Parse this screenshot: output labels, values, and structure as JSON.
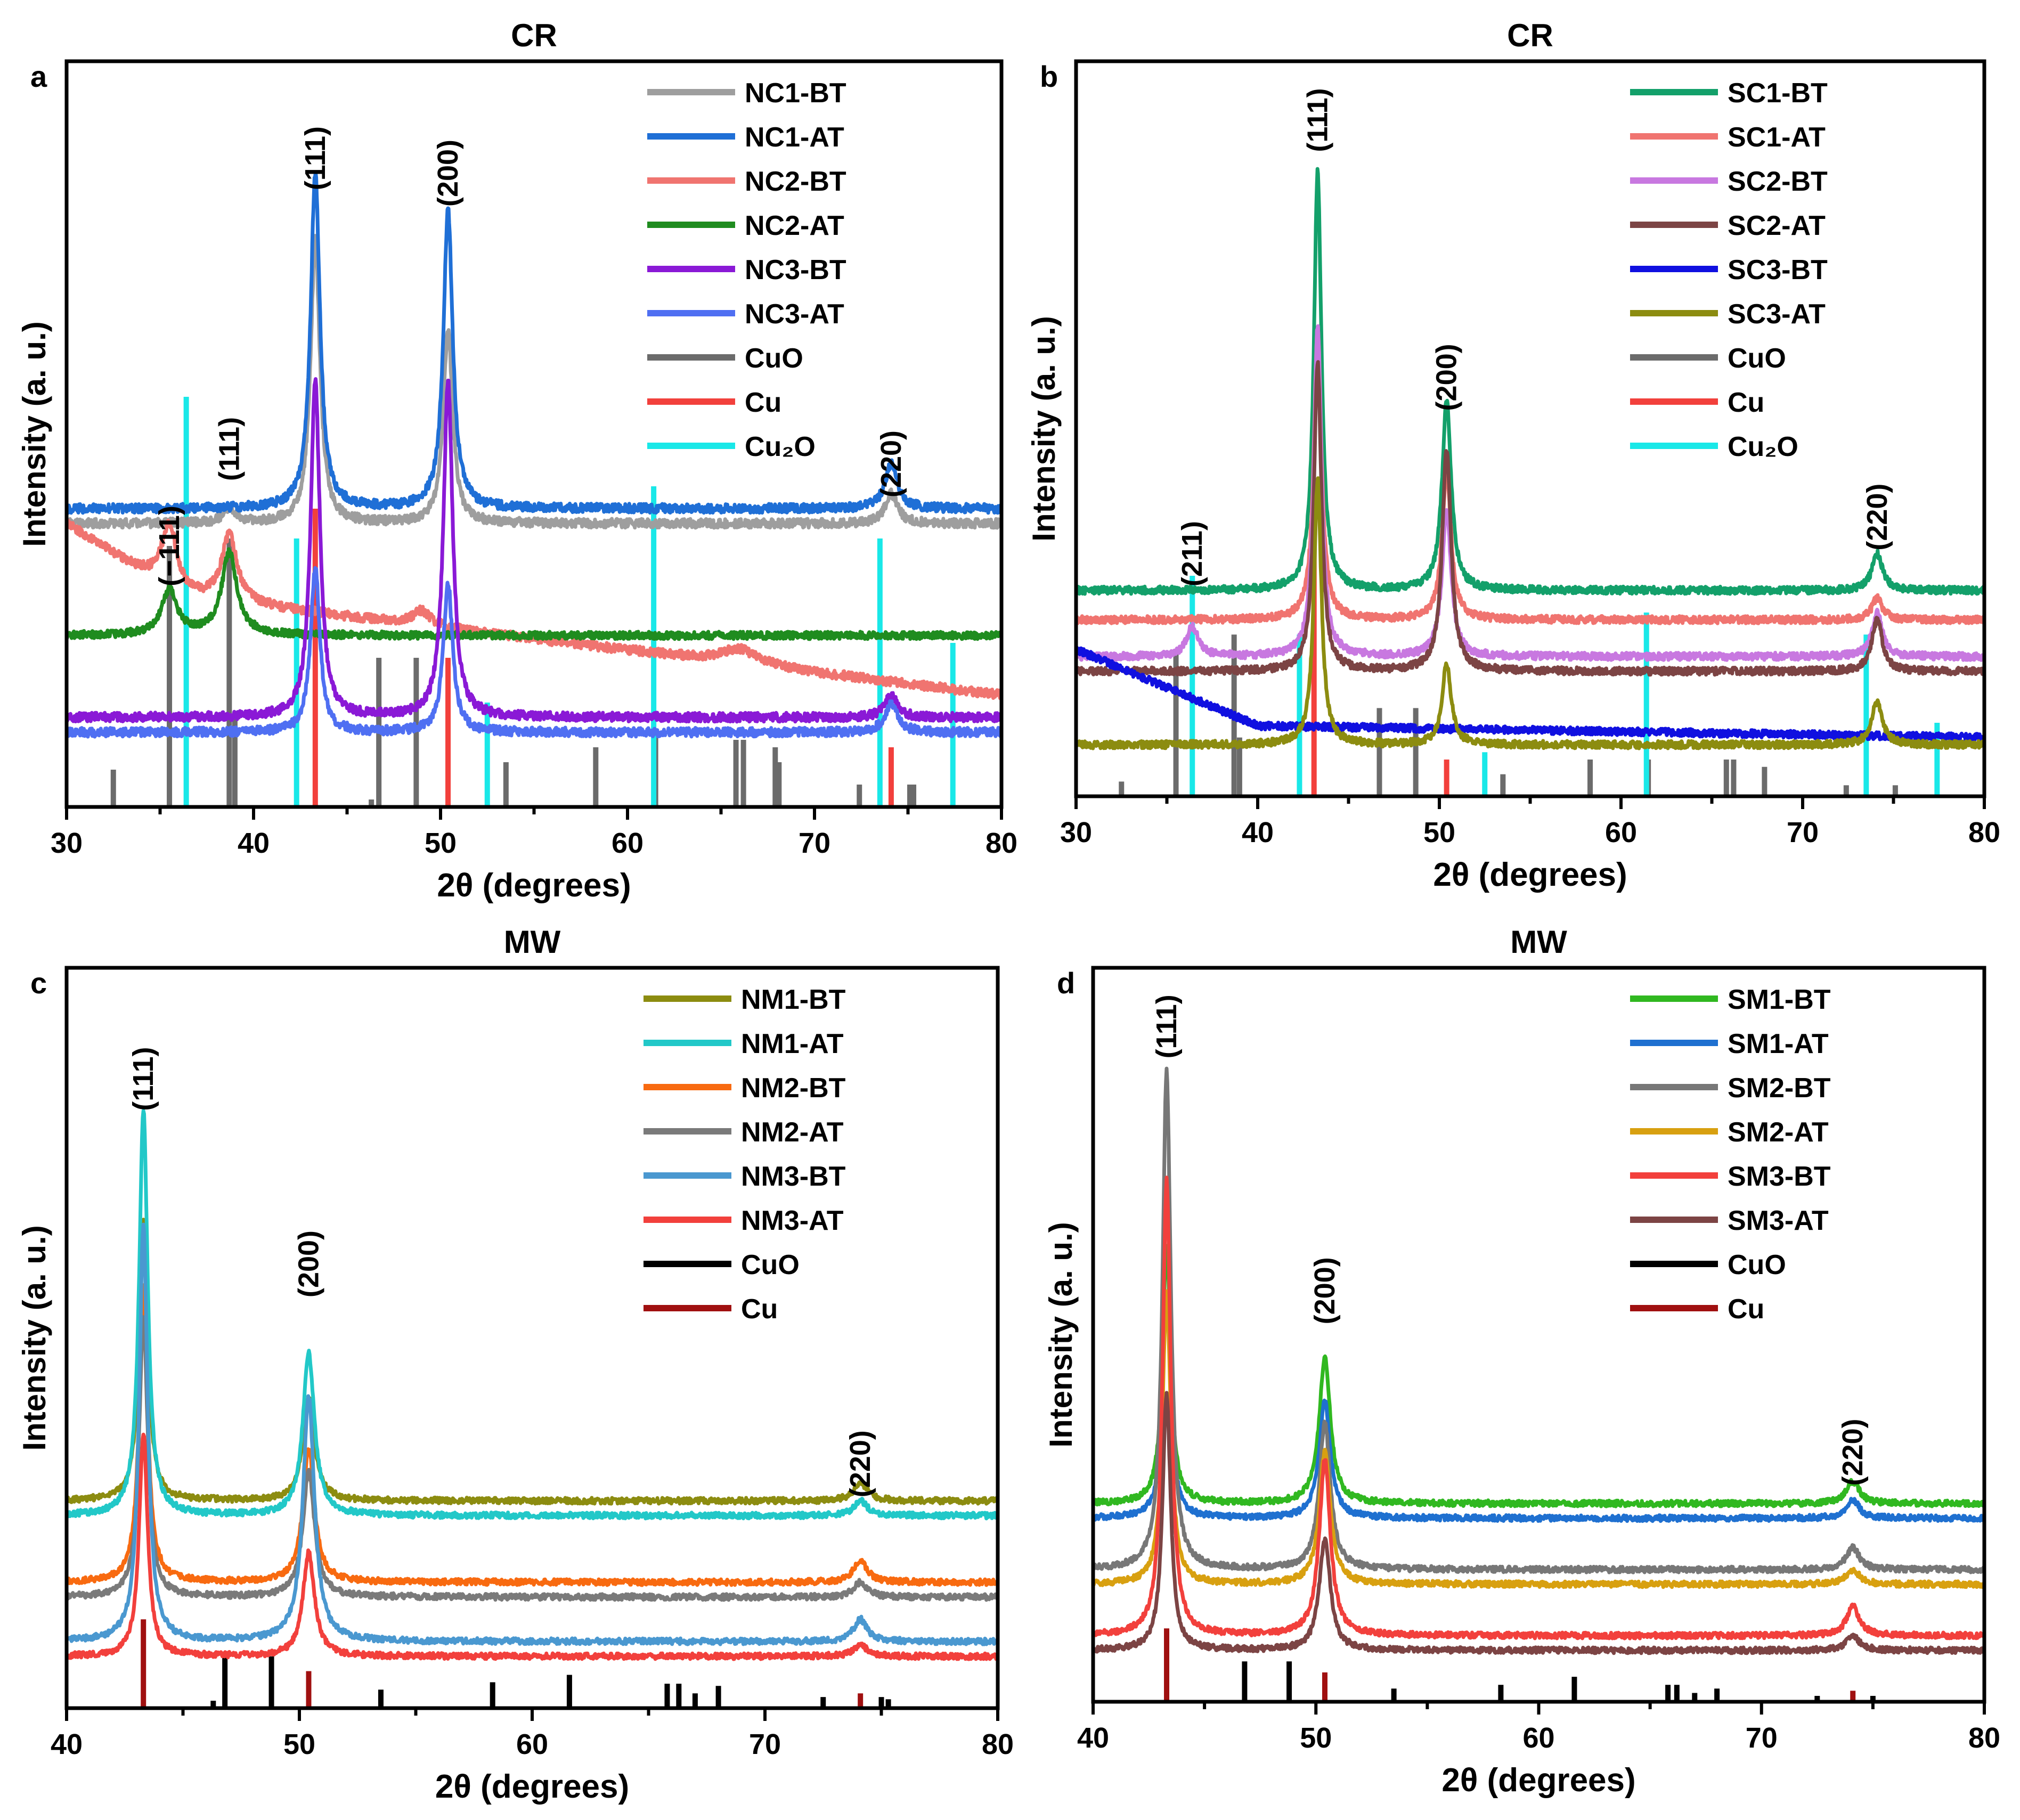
{
  "chart_data": [
    {
      "panel": "a",
      "title": "CR",
      "type": "line",
      "xlabel": "2θ (degrees)",
      "ylabel": "Intensity (a. u.)",
      "xlim": [
        30,
        80
      ],
      "xticks": [
        30,
        40,
        50,
        60,
        70,
        80
      ],
      "ylim": [
        0,
        100
      ],
      "grid": false,
      "legend_position": "top-right",
      "series": [
        {
          "name": "NC1-BT",
          "color": "#9e9e9e",
          "base": 38,
          "noise": 0.6,
          "slope": 0,
          "peaks": [
            [
              38.7,
              2,
              0.4
            ],
            [
              43.3,
              38,
              0.3
            ],
            [
              50.4,
              26,
              0.3
            ],
            [
              74.1,
              4,
              0.4
            ]
          ]
        },
        {
          "name": "NC1-AT",
          "color": "#1f6fd6",
          "base": 40,
          "noise": 0.6,
          "slope": 0,
          "peaks": [
            [
              43.3,
              45,
              0.3
            ],
            [
              50.4,
              40,
              0.3
            ],
            [
              74.1,
              6,
              0.4
            ]
          ]
        },
        {
          "name": "NC2-BT",
          "color": "#f07470",
          "base": 30,
          "noise": 0.6,
          "slope": -0.3,
          "tail": [
            30,
            36,
            8
          ],
          "peaks": [
            [
              35.5,
              9,
              0.5
            ],
            [
              38.7,
              9,
              0.5
            ],
            [
              49,
              2,
              0.6
            ],
            [
              66,
              2,
              1.2
            ]
          ]
        },
        {
          "name": "NC2-AT",
          "color": "#1f8c1f",
          "base": 23,
          "noise": 0.5,
          "slope": 0,
          "peaks": [
            [
              35.5,
              6,
              0.5
            ],
            [
              38.7,
              11,
              0.5
            ]
          ]
        },
        {
          "name": "NC3-BT",
          "color": "#8a19d6",
          "base": 12,
          "noise": 0.6,
          "slope": 0,
          "peaks": [
            [
              43.3,
              45,
              0.3
            ],
            [
              50.4,
              45,
              0.3
            ],
            [
              74.1,
              3,
              0.4
            ]
          ]
        },
        {
          "name": "NC3-AT",
          "color": "#4f6ff2",
          "base": 10,
          "noise": 0.6,
          "slope": 0,
          "peaks": [
            [
              43.3,
              22,
              0.3
            ],
            [
              50.4,
              20,
              0.3
            ],
            [
              74.1,
              4,
              0.4
            ]
          ]
        }
      ],
      "references": [
        {
          "name": "CuO",
          "color": "#6b6b6b",
          "lines": [
            [
              32.5,
              5
            ],
            [
              35.5,
              35
            ],
            [
              38.7,
              36
            ],
            [
              39,
              12
            ],
            [
              46.3,
              1
            ],
            [
              48.7,
              20
            ],
            [
              46.7,
              20
            ],
            [
              53.5,
              6
            ],
            [
              58.3,
              8
            ],
            [
              61.5,
              10
            ],
            [
              65.8,
              9
            ],
            [
              66.2,
              9
            ],
            [
              67.9,
              8
            ],
            [
              68.1,
              6
            ],
            [
              72.4,
              3
            ],
            [
              75.1,
              3
            ],
            [
              75.3,
              3
            ]
          ]
        },
        {
          "name": "Cu",
          "color": "#f2403c",
          "lines": [
            [
              43.3,
              40
            ],
            [
              50.4,
              20
            ],
            [
              74.1,
              8
            ]
          ]
        },
        {
          "name": "Cu₂O",
          "color": "#19e8e8",
          "lines": [
            [
              36.4,
              55
            ],
            [
              42.3,
              36
            ],
            [
              52.5,
              14
            ],
            [
              61.4,
              43
            ],
            [
              73.5,
              36
            ],
            [
              77.4,
              22
            ]
          ]
        }
      ],
      "annotations": [
        {
          "label": "(−111)",
          "x": 35.5,
          "y": 35
        },
        {
          "label": "(111)",
          "x": 38.7,
          "y": 48
        },
        {
          "label": "(111)",
          "x": 43.3,
          "y": 87
        },
        {
          "label": "(200)",
          "x": 50.4,
          "y": 85
        },
        {
          "label": "(220)",
          "x": 74.1,
          "y": 46
        }
      ]
    },
    {
      "panel": "b",
      "title": "CR",
      "type": "line",
      "xlabel": "2θ (degrees)",
      "ylabel": "Intensity (a. u.)",
      "xlim": [
        30,
        80
      ],
      "xticks": [
        30,
        40,
        50,
        60,
        70,
        80
      ],
      "ylim": [
        0,
        100
      ],
      "grid": false,
      "legend_position": "top-right",
      "series": [
        {
          "name": "SC1-BT",
          "color": "#13a06a",
          "base": 28,
          "noise": 0.5,
          "slope": 0,
          "peaks": [
            [
              43.3,
              57,
              0.25
            ],
            [
              50.4,
              26,
              0.3
            ],
            [
              74.1,
              5,
              0.35
            ]
          ]
        },
        {
          "name": "SC1-AT",
          "color": "#f07470",
          "base": 24,
          "noise": 0.5,
          "slope": 0,
          "peaks": [
            [
              43.3,
              40,
              0.25
            ],
            [
              50.4,
              20,
              0.3
            ],
            [
              74.1,
              3,
              0.35
            ]
          ]
        },
        {
          "name": "SC2-BT",
          "color": "#c878e0",
          "base": 19,
          "noise": 0.5,
          "slope": 0,
          "peaks": [
            [
              36.4,
              4,
              0.4
            ],
            [
              43.3,
              45,
              0.25
            ],
            [
              50.4,
              20,
              0.3
            ],
            [
              74.1,
              6,
              0.35
            ]
          ]
        },
        {
          "name": "SC2-AT",
          "color": "#7c4444",
          "base": 17,
          "noise": 0.5,
          "slope": 0,
          "peaks": [
            [
              43.3,
              42,
              0.25
            ],
            [
              50.4,
              30,
              0.3
            ],
            [
              74.1,
              7,
              0.35
            ]
          ]
        },
        {
          "name": "SC3-BT",
          "color": "#1010e0",
          "base": 10,
          "noise": 0.5,
          "slope": -0.04,
          "tail": [
            30,
            40,
            10
          ],
          "peaks": []
        },
        {
          "name": "SC3-AT",
          "color": "#8c8c10",
          "base": 7,
          "noise": 0.5,
          "slope": 0,
          "peaks": [
            [
              43.3,
              36,
              0.25
            ],
            [
              50.4,
              11,
              0.3
            ],
            [
              74.1,
              6,
              0.35
            ]
          ]
        }
      ],
      "references": [
        {
          "name": "CuO",
          "color": "#6b6b6b",
          "lines": [
            [
              32.5,
              2
            ],
            [
              35.5,
              20
            ],
            [
              38.7,
              22
            ],
            [
              39,
              8
            ],
            [
              46.7,
              12
            ],
            [
              48.7,
              12
            ],
            [
              53.5,
              3
            ],
            [
              58.3,
              5
            ],
            [
              61.5,
              5
            ],
            [
              65.8,
              5
            ],
            [
              66.2,
              5
            ],
            [
              67.9,
              4
            ],
            [
              72.4,
              1.5
            ],
            [
              75.1,
              1.5
            ]
          ]
        },
        {
          "name": "Cu",
          "color": "#f2403c",
          "lines": [
            [
              43.1,
              40
            ],
            [
              50.4,
              5
            ]
          ]
        },
        {
          "name": "Cu₂O",
          "color": "#19e8e8",
          "lines": [
            [
              36.4,
              30
            ],
            [
              42.3,
              22
            ],
            [
              52.5,
              6
            ],
            [
              61.4,
              25
            ],
            [
              73.5,
              22
            ],
            [
              77.4,
              10
            ]
          ]
        }
      ],
      "annotations": [
        {
          "label": "(211)",
          "x": 36.4,
          "y": 33
        },
        {
          "label": "(111)",
          "x": 43.3,
          "y": 92
        },
        {
          "label": "(200)",
          "x": 50.4,
          "y": 57
        },
        {
          "label": "(220)",
          "x": 74.1,
          "y": 38
        }
      ]
    },
    {
      "panel": "c",
      "title": "MW",
      "type": "line",
      "xlabel": "2θ (degrees)",
      "ylabel": "Intensity (a. u.)",
      "xlim": [
        40,
        80
      ],
      "xticks": [
        40,
        50,
        60,
        70,
        80
      ],
      "ylim": [
        0,
        100
      ],
      "grid": false,
      "legend_position": "top-right",
      "series": [
        {
          "name": "NM1-BT",
          "color": "#8c8c10",
          "base": 28,
          "noise": 0.4,
          "slope": 0,
          "peaks": [
            [
              43.3,
              38,
              0.22
            ],
            [
              50.4,
              14,
              0.3
            ],
            [
              74.1,
              2.5,
              0.35
            ]
          ]
        },
        {
          "name": "NM1-AT",
          "color": "#22c8c8",
          "base": 26,
          "noise": 0.4,
          "slope": 0,
          "peaks": [
            [
              43.3,
              55,
              0.22
            ],
            [
              50.4,
              22,
              0.3
            ],
            [
              74.1,
              2,
              0.35
            ]
          ]
        },
        {
          "name": "NM2-BT",
          "color": "#f86a10",
          "base": 17,
          "noise": 0.4,
          "slope": 0,
          "peaks": [
            [
              43.3,
              40,
              0.22
            ],
            [
              50.4,
              18,
              0.3
            ],
            [
              74.1,
              3,
              0.35
            ]
          ]
        },
        {
          "name": "NM2-AT",
          "color": "#7a7a7a",
          "base": 15,
          "noise": 0.4,
          "slope": 0,
          "peaks": [
            [
              43.3,
              38,
              0.22
            ],
            [
              50.4,
              17,
              0.3
            ],
            [
              74.1,
              2,
              0.35
            ]
          ]
        },
        {
          "name": "NM3-BT",
          "color": "#4a98d0",
          "base": 9,
          "noise": 0.4,
          "slope": 0,
          "peaks": [
            [
              43.3,
              56,
              0.22
            ],
            [
              50.4,
              33,
              0.3
            ],
            [
              74.1,
              3,
              0.35
            ]
          ]
        },
        {
          "name": "NM3-AT",
          "color": "#f2403c",
          "base": 7,
          "noise": 0.4,
          "slope": 0,
          "peaks": [
            [
              43.3,
              30,
              0.22
            ],
            [
              50.4,
              14,
              0.3
            ],
            [
              74.1,
              1.5,
              0.35
            ]
          ]
        }
      ],
      "references": [
        {
          "name": "CuO",
          "color": "#000000",
          "lines": [
            [
              46.3,
              1
            ],
            [
              46.8,
              7
            ],
            [
              48.8,
              7
            ],
            [
              53.5,
              2.5
            ],
            [
              58.3,
              3.5
            ],
            [
              61.6,
              4.5
            ],
            [
              65.8,
              3.3
            ],
            [
              66.3,
              3.3
            ],
            [
              67,
              2
            ],
            [
              68,
              3
            ],
            [
              72.5,
              1.5
            ],
            [
              75,
              1.5
            ],
            [
              75.3,
              1.2
            ]
          ]
        },
        {
          "name": "Cu",
          "color": "#a01010",
          "lines": [
            [
              43.3,
              12
            ],
            [
              50.4,
              5
            ],
            [
              74.1,
              2
            ]
          ]
        }
      ],
      "annotations": [
        {
          "label": "(111)",
          "x": 43.3,
          "y": 85
        },
        {
          "label": "(200)",
          "x": 50.4,
          "y": 60
        },
        {
          "label": "(220)",
          "x": 74.1,
          "y": 33
        }
      ]
    },
    {
      "panel": "d",
      "title": "MW",
      "type": "line",
      "xlabel": "2θ (degrees)",
      "ylabel": "Intensity (a. u.)",
      "xlim": [
        40,
        80
      ],
      "xticks": [
        40,
        50,
        60,
        70,
        80
      ],
      "ylim": [
        0,
        100
      ],
      "grid": false,
      "legend_position": "top-right",
      "series": [
        {
          "name": "SM1-BT",
          "color": "#30b820",
          "base": 27,
          "noise": 0.4,
          "slope": 0,
          "peaks": [
            [
              43.3,
              35,
              0.22
            ],
            [
              50.4,
              20,
              0.3
            ],
            [
              74.1,
              3,
              0.35
            ]
          ]
        },
        {
          "name": "SM1-AT",
          "color": "#1f70d0",
          "base": 25,
          "noise": 0.4,
          "slope": 0,
          "peaks": [
            [
              43.3,
              30,
              0.22
            ],
            [
              50.4,
              16,
              0.3
            ],
            [
              74.1,
              2.5,
              0.35
            ]
          ]
        },
        {
          "name": "SM2-BT",
          "color": "#777777",
          "base": 18,
          "noise": 0.4,
          "slope": 0,
          "peaks": [
            [
              43.3,
              68,
              0.22
            ],
            [
              50.4,
              20,
              0.3
            ],
            [
              74.1,
              3,
              0.35
            ]
          ]
        },
        {
          "name": "SM2-AT",
          "color": "#d8a010",
          "base": 16,
          "noise": 0.4,
          "slope": 0,
          "peaks": [
            [
              43.3,
              40,
              0.22
            ],
            [
              50.4,
              18,
              0.3
            ],
            [
              74.1,
              2,
              0.35
            ]
          ]
        },
        {
          "name": "SM3-BT",
          "color": "#f2403c",
          "base": 9,
          "noise": 0.4,
          "slope": 0,
          "peaks": [
            [
              43.3,
              62,
              0.22
            ],
            [
              50.4,
              24,
              0.3
            ],
            [
              74.1,
              4,
              0.35
            ]
          ]
        },
        {
          "name": "SM3-AT",
          "color": "#7c4444",
          "base": 7,
          "noise": 0.4,
          "slope": 0,
          "peaks": [
            [
              43.3,
              35,
              0.22
            ],
            [
              50.4,
              15,
              0.3
            ],
            [
              74.1,
              2,
              0.35
            ]
          ]
        }
      ],
      "references": [
        {
          "name": "CuO",
          "color": "#000000",
          "lines": [
            [
              46.8,
              5.5
            ],
            [
              48.8,
              5.5
            ],
            [
              53.5,
              1.8
            ],
            [
              58.3,
              2.3
            ],
            [
              61.6,
              3.4
            ],
            [
              65.8,
              2.3
            ],
            [
              66.2,
              2.3
            ],
            [
              67,
              1.2
            ],
            [
              68,
              1.8
            ],
            [
              72.5,
              0.8
            ],
            [
              75,
              0.8
            ]
          ]
        },
        {
          "name": "Cu",
          "color": "#a01010",
          "lines": [
            [
              43.3,
              10
            ],
            [
              50.4,
              4
            ],
            [
              74.1,
              1.5
            ]
          ]
        }
      ],
      "annotations": [
        {
          "label": "(111)",
          "x": 43.3,
          "y": 92
        },
        {
          "label": "(200)",
          "x": 50.4,
          "y": 56
        },
        {
          "label": "(220)",
          "x": 74.1,
          "y": 34
        }
      ]
    }
  ]
}
